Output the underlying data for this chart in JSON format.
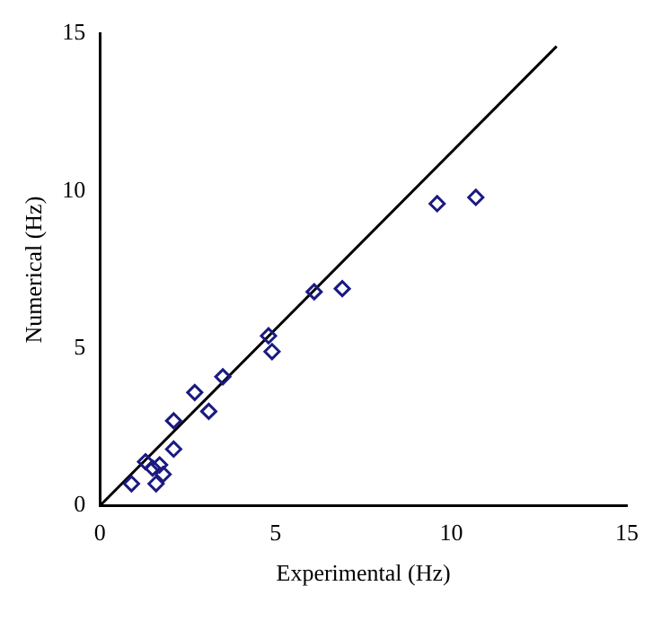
{
  "chart_data": {
    "type": "scatter",
    "xlabel": "Experimental (Hz)",
    "ylabel": "Numerical (Hz)",
    "xlim": [
      0,
      15
    ],
    "ylim": [
      0,
      15
    ],
    "xticks": [
      0,
      5,
      10,
      15
    ],
    "yticks": [
      0,
      5,
      10,
      15
    ],
    "grid": false,
    "legend": false,
    "series": [
      {
        "marker": "diamond",
        "color": "#1a1a80",
        "x": [
          0.9,
          1.3,
          1.5,
          1.7,
          1.8,
          1.6,
          2.1,
          2.1,
          2.7,
          3.1,
          3.5,
          4.8,
          4.9,
          6.1,
          6.9,
          9.6,
          10.7
        ],
        "values": [
          0.7,
          1.4,
          1.2,
          1.3,
          1.0,
          0.7,
          1.8,
          2.7,
          3.6,
          3.0,
          4.1,
          5.4,
          4.9,
          6.8,
          6.9,
          9.6,
          9.8
        ]
      },
      {
        "type": "line",
        "color": "#000000",
        "x": [
          0,
          13
        ],
        "values": [
          0,
          14.6
        ]
      }
    ]
  }
}
